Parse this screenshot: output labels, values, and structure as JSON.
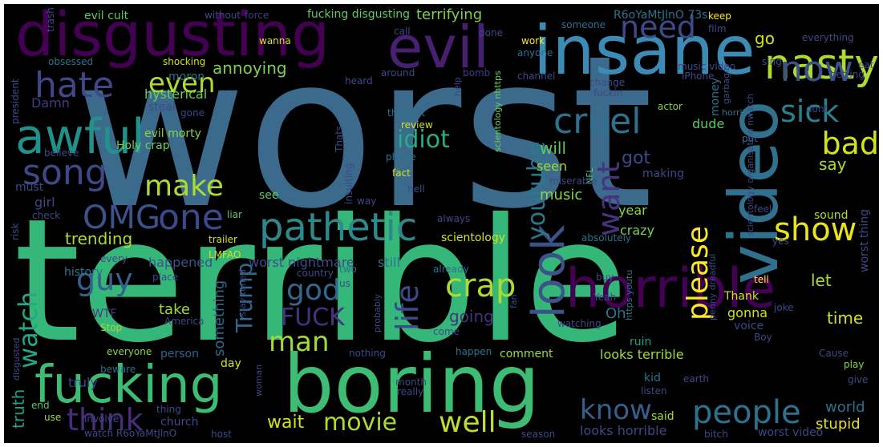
{
  "words": [
    {
      "text": "worst",
      "color": "#3b6a8c"
    },
    {
      "text": "terrible",
      "color": "#35b779"
    },
    {
      "text": "boring",
      "color": "#3dbc74"
    },
    {
      "text": "insane",
      "color": "#3b8bb5"
    },
    {
      "text": "disgusting",
      "color": "#440154"
    },
    {
      "text": "evil",
      "color": "#482071"
    },
    {
      "text": "video",
      "color": "#30718e"
    },
    {
      "text": "horrible",
      "color": "#440154"
    },
    {
      "text": "fucking",
      "color": "#3dbc74"
    },
    {
      "text": "awful",
      "color": "#21918c"
    },
    {
      "text": "nasty",
      "color": "#addc30"
    },
    {
      "text": "hate",
      "color": "#404688"
    },
    {
      "text": "song",
      "color": "#3e4989"
    },
    {
      "text": "look",
      "color": "#3b528b"
    },
    {
      "text": "now",
      "color": "#3b528b"
    },
    {
      "text": "pathetic",
      "color": "#2c8a8c"
    },
    {
      "text": "OMG",
      "color": "#3b528b"
    },
    {
      "text": "one",
      "color": "#3e4989"
    },
    {
      "text": "make",
      "color": "#addc30"
    },
    {
      "text": "even",
      "color": "#addc30"
    },
    {
      "text": "need",
      "color": "#3e4989"
    },
    {
      "text": "sick",
      "color": "#26828e"
    },
    {
      "text": "bad",
      "color": "#d2e21b"
    },
    {
      "text": "show",
      "color": "#e8e419"
    },
    {
      "text": "cruel",
      "color": "#2c728e"
    },
    {
      "text": "want",
      "color": "#46327e"
    },
    {
      "text": "crap",
      "color": "#addc30"
    },
    {
      "text": "god",
      "color": "#31688e"
    },
    {
      "text": "life",
      "color": "#3e4989"
    },
    {
      "text": "please",
      "color": "#fde725"
    },
    {
      "text": "youtube",
      "color": "#2a788e"
    },
    {
      "text": "idiot",
      "color": "#27ad81"
    },
    {
      "text": "guy",
      "color": "#35608d"
    },
    {
      "text": "watch",
      "color": "#22a884"
    },
    {
      "text": "FUCK",
      "color": "#46327e"
    },
    {
      "text": "man",
      "color": "#a0da39"
    },
    {
      "text": "Trump",
      "color": "#31688e"
    },
    {
      "text": "people",
      "color": "#2c728e"
    },
    {
      "text": "know",
      "color": "#35608d"
    },
    {
      "text": "think",
      "color": "#472d7b"
    },
    {
      "text": "movie",
      "color": "#addc30"
    },
    {
      "text": "well",
      "color": "#bddf26"
    },
    {
      "text": "wait",
      "color": "#d2e21b"
    },
    {
      "text": "truth",
      "color": "#1fa188"
    },
    {
      "text": "world",
      "color": "#2c728e"
    },
    {
      "text": "stupid",
      "color": "#e5e419"
    },
    {
      "text": "trending",
      "color": "#addc30"
    },
    {
      "text": "annoying",
      "color": "#7ad151"
    },
    {
      "text": "terrifying",
      "color": "#7ad151"
    },
    {
      "text": "Damn",
      "color": "#443983"
    },
    {
      "text": "hysterical",
      "color": "#6ece58"
    },
    {
      "text": "go",
      "color": "#d2e21b"
    },
    {
      "text": "got",
      "color": "#3e4989"
    },
    {
      "text": "will",
      "color": "#5ec962"
    },
    {
      "text": "seen",
      "color": "#a0da39"
    },
    {
      "text": "say",
      "color": "#addc30"
    },
    {
      "text": "music",
      "color": "#86d549"
    },
    {
      "text": "year",
      "color": "#86d549"
    },
    {
      "text": "crazy",
      "color": "#7ad151"
    },
    {
      "text": "let",
      "color": "#addc30"
    },
    {
      "text": "time",
      "color": "#d2e21b"
    },
    {
      "text": "sound",
      "color": "#addc30"
    },
    {
      "text": "happened",
      "color": "#3b528b"
    },
    {
      "text": "worst nightmare",
      "color": "#3e4989"
    },
    {
      "text": "still",
      "color": "#2a788e"
    },
    {
      "text": "scientology",
      "color": "#d2e21b"
    },
    {
      "text": "going",
      "color": "#46327e"
    },
    {
      "text": "something",
      "color": "#31688e"
    },
    {
      "text": "take",
      "color": "#a0da39"
    },
    {
      "text": "Oh",
      "color": "#2c728e"
    },
    {
      "text": "gonna",
      "color": "#d2e21b"
    },
    {
      "text": "Thank",
      "color": "#d2e21b"
    },
    {
      "text": "voice",
      "color": "#3e4989"
    },
    {
      "text": "ruin",
      "color": "#1fa188"
    },
    {
      "text": "history",
      "color": "#2a788e"
    },
    {
      "text": "WTF",
      "color": "#443983"
    },
    {
      "text": "Stop",
      "color": "#a0da39"
    },
    {
      "text": "person",
      "color": "#32648e"
    },
    {
      "text": "day",
      "color": "#d2e21b"
    },
    {
      "text": "comment",
      "color": "#a0da39"
    },
    {
      "text": "looks terrible",
      "color": "#a0da39"
    },
    {
      "text": "looks horrible",
      "color": "#404688"
    },
    {
      "text": "said",
      "color": "#a0da39"
    },
    {
      "text": "worst video",
      "color": "#3e4989"
    },
    {
      "text": "church",
      "color": "#3e4989"
    },
    {
      "text": "thing",
      "color": "#3e4989"
    },
    {
      "text": "truly",
      "color": "#404688"
    },
    {
      "text": "end",
      "color": "#5ec962"
    },
    {
      "text": "use",
      "color": "#a0da39"
    },
    {
      "text": "watch R6oYaMtJlnO",
      "color": "#3e4989"
    },
    {
      "text": "girl",
      "color": "#3e4989"
    },
    {
      "text": "must",
      "color": "#3e4989"
    },
    {
      "text": "see",
      "color": "#5ec962"
    },
    {
      "text": "Holy crap",
      "color": "#6ece58"
    },
    {
      "text": "evil morty",
      "color": "#86d549"
    },
    {
      "text": "dude",
      "color": "#5ec962"
    },
    {
      "text": "money",
      "color": "#2c728e"
    },
    {
      "text": "making",
      "color": "#3e4989"
    },
    {
      "text": "steal",
      "color": "#3e4989"
    },
    {
      "text": "gone",
      "color": "#3e4989"
    },
    {
      "text": "believe",
      "color": "#3e4989"
    },
    {
      "text": "moron",
      "color": "#2c728e"
    },
    {
      "text": "evil cult",
      "color": "#5ec962"
    },
    {
      "text": "trash",
      "color": "#3e4989"
    },
    {
      "text": "without",
      "color": "#3e4989"
    },
    {
      "text": "force",
      "color": "#443983"
    },
    {
      "text": "fucking disgusting",
      "color": "#5ec962"
    },
    {
      "text": "R6oYaMtJlnO 73s",
      "color": "#2c728e"
    },
    {
      "text": "keep",
      "color": "#fde725"
    },
    {
      "text": "everything",
      "color": "#3e4989"
    },
    {
      "text": "eat",
      "color": "#3e4989"
    },
    {
      "text": "call",
      "color": "#3e4989"
    },
    {
      "text": "done",
      "color": "#3e4989"
    },
    {
      "text": "film",
      "color": "#3e4989"
    },
    {
      "text": "work",
      "color": "#fde725"
    },
    {
      "text": "someone",
      "color": "#2c728e"
    },
    {
      "text": "wanna",
      "color": "#d2e21b"
    },
    {
      "text": "anyone",
      "color": "#2c728e"
    },
    {
      "text": "obsessed",
      "color": "#2c728e"
    },
    {
      "text": "shocking",
      "color": "#d2e21b"
    },
    {
      "text": "sing",
      "color": "#3e4989"
    },
    {
      "text": "president",
      "color": "#3e4989"
    },
    {
      "text": "around",
      "color": "#3e4989"
    },
    {
      "text": "bomb",
      "color": "#443983"
    },
    {
      "text": "heard",
      "color": "#3e4989"
    },
    {
      "text": "channel",
      "color": "#3e4989"
    },
    {
      "text": "iPhone",
      "color": "#3e4989"
    },
    {
      "text": "music video",
      "color": "#3e4989"
    },
    {
      "text": "getting",
      "color": "#3e4989"
    },
    {
      "text": "help",
      "color": "#3e4989"
    },
    {
      "text": "change",
      "color": "#3e4989"
    },
    {
      "text": "fuckin",
      "color": "#3e4989"
    },
    {
      "text": "actor",
      "color": "#86d549"
    },
    {
      "text": "garbage",
      "color": "#3e4989"
    },
    {
      "text": "dont",
      "color": "#3e4989"
    },
    {
      "text": "thought",
      "color": "#2c728e"
    },
    {
      "text": "review",
      "color": "#d2e21b"
    },
    {
      "text": "scientology nhttps",
      "color": "#6ece58"
    },
    {
      "text": "horrific",
      "color": "#2c728e"
    },
    {
      "text": "put",
      "color": "#2c728e"
    },
    {
      "text": "Thats",
      "color": "#3e4989"
    },
    {
      "text": "insulting",
      "color": "#3e4989"
    },
    {
      "text": "phone",
      "color": "#2c728e"
    },
    {
      "text": "fact",
      "color": "#d2e21b"
    },
    {
      "text": "NFL",
      "color": "#5ec962"
    },
    {
      "text": "miserable",
      "color": "#3e4989"
    },
    {
      "text": "scientology organisation nwatch",
      "color": "#3e4989"
    },
    {
      "text": "hell",
      "color": "#3e4989"
    },
    {
      "text": "way",
      "color": "#3e4989"
    },
    {
      "text": "hey",
      "color": "#2c728e"
    },
    {
      "text": "check",
      "color": "#3e4989"
    },
    {
      "text": "risk",
      "color": "#3e4989"
    },
    {
      "text": "liar",
      "color": "#5ec962"
    },
    {
      "text": "always",
      "color": "#3e4989"
    },
    {
      "text": "feel",
      "color": "#3e4989"
    },
    {
      "text": "worst thing",
      "color": "#3e4989"
    },
    {
      "text": "trailer",
      "color": "#d2e21b"
    },
    {
      "text": "LMFAO",
      "color": "#d2e21b"
    },
    {
      "text": "every",
      "color": "#3e4989"
    },
    {
      "text": "two",
      "color": "#2c728e"
    },
    {
      "text": "fan",
      "color": "#3e4989"
    },
    {
      "text": "already",
      "color": "#2c728e"
    },
    {
      "text": "country",
      "color": "#3e4989"
    },
    {
      "text": "absolutely",
      "color": "#2c728e"
    },
    {
      "text": "https youtu",
      "color": "#2c728e"
    },
    {
      "text": "penny dreadful",
      "color": "#3e4989"
    },
    {
      "text": "yes",
      "color": "#3e4989"
    },
    {
      "text": "place",
      "color": "#3e4989"
    },
    {
      "text": "us",
      "color": "#3e4989"
    },
    {
      "text": "buy",
      "color": "#3e4989"
    },
    {
      "text": "tell",
      "color": "#fde725"
    },
    {
      "text": "stay tuned",
      "color": "#3e4989"
    },
    {
      "text": "probably",
      "color": "#3e4989"
    },
    {
      "text": "Yeah",
      "color": "#3e4989"
    },
    {
      "text": "joke",
      "color": "#3e4989"
    },
    {
      "text": "America",
      "color": "#3e4989"
    },
    {
      "text": "watching",
      "color": "#3e4989"
    },
    {
      "text": "disgusted",
      "color": "#3e4989"
    },
    {
      "text": "come",
      "color": "#3e4989"
    },
    {
      "text": "Boy",
      "color": "#3e4989"
    },
    {
      "text": "everyone",
      "color": "#86d549"
    },
    {
      "text": "nothing",
      "color": "#3e4989"
    },
    {
      "text": "happen",
      "color": "#2c728e"
    },
    {
      "text": "Cause",
      "color": "#3e4989"
    },
    {
      "text": "beware",
      "color": "#2c728e"
    },
    {
      "text": "play",
      "color": "#86d549"
    },
    {
      "text": "woman",
      "color": "#3e4989"
    },
    {
      "text": "kid",
      "color": "#2c728e"
    },
    {
      "text": "earth",
      "color": "#3e4989"
    },
    {
      "text": "month",
      "color": "#3e4989"
    },
    {
      "text": "listen",
      "color": "#3e4989"
    },
    {
      "text": "give",
      "color": "#3e4989"
    },
    {
      "text": "really",
      "color": "#3e4989"
    },
    {
      "text": "involve",
      "color": "#3e4989"
    },
    {
      "text": "host",
      "color": "#3e4989"
    },
    {
      "text": "season",
      "color": "#3e4989"
    },
    {
      "text": "bitch",
      "color": "#3e4989"
    }
  ]
}
